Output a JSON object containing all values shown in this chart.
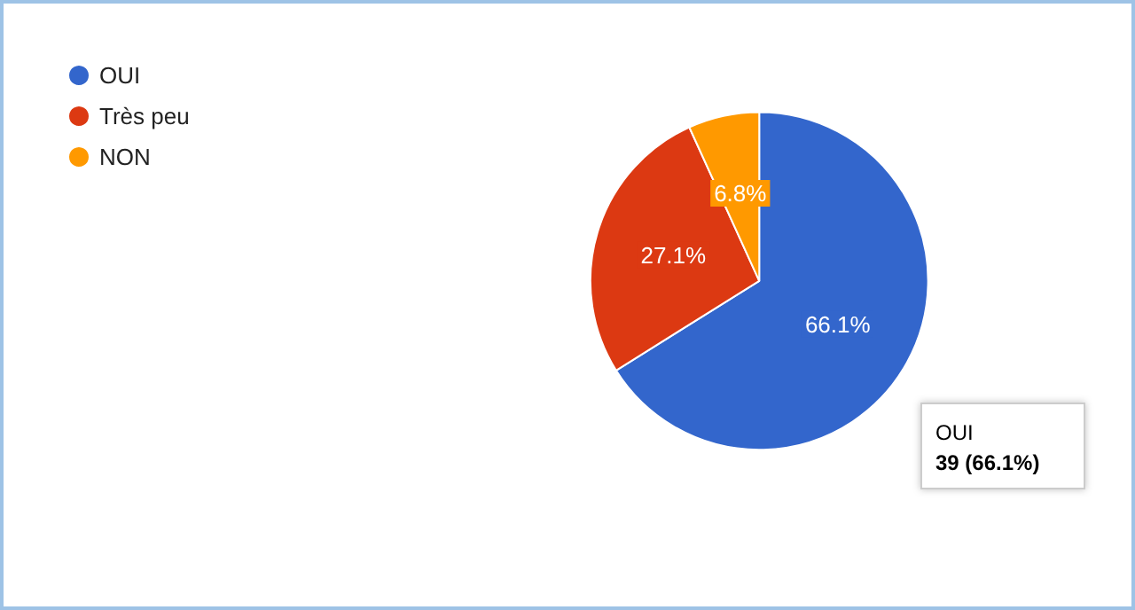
{
  "chart_data": {
    "type": "pie",
    "categories": [
      "OUI",
      "Très peu",
      "NON"
    ],
    "values": [
      66.1,
      27.1,
      6.8
    ],
    "colors": [
      "#3366cc",
      "#dc3912",
      "#ff9900"
    ],
    "value_labels": [
      "66.1%",
      "27.1%",
      "6.8%"
    ],
    "legend": "top left",
    "annotations": [
      "OUI\n39 (66.1%)"
    ]
  }
}
